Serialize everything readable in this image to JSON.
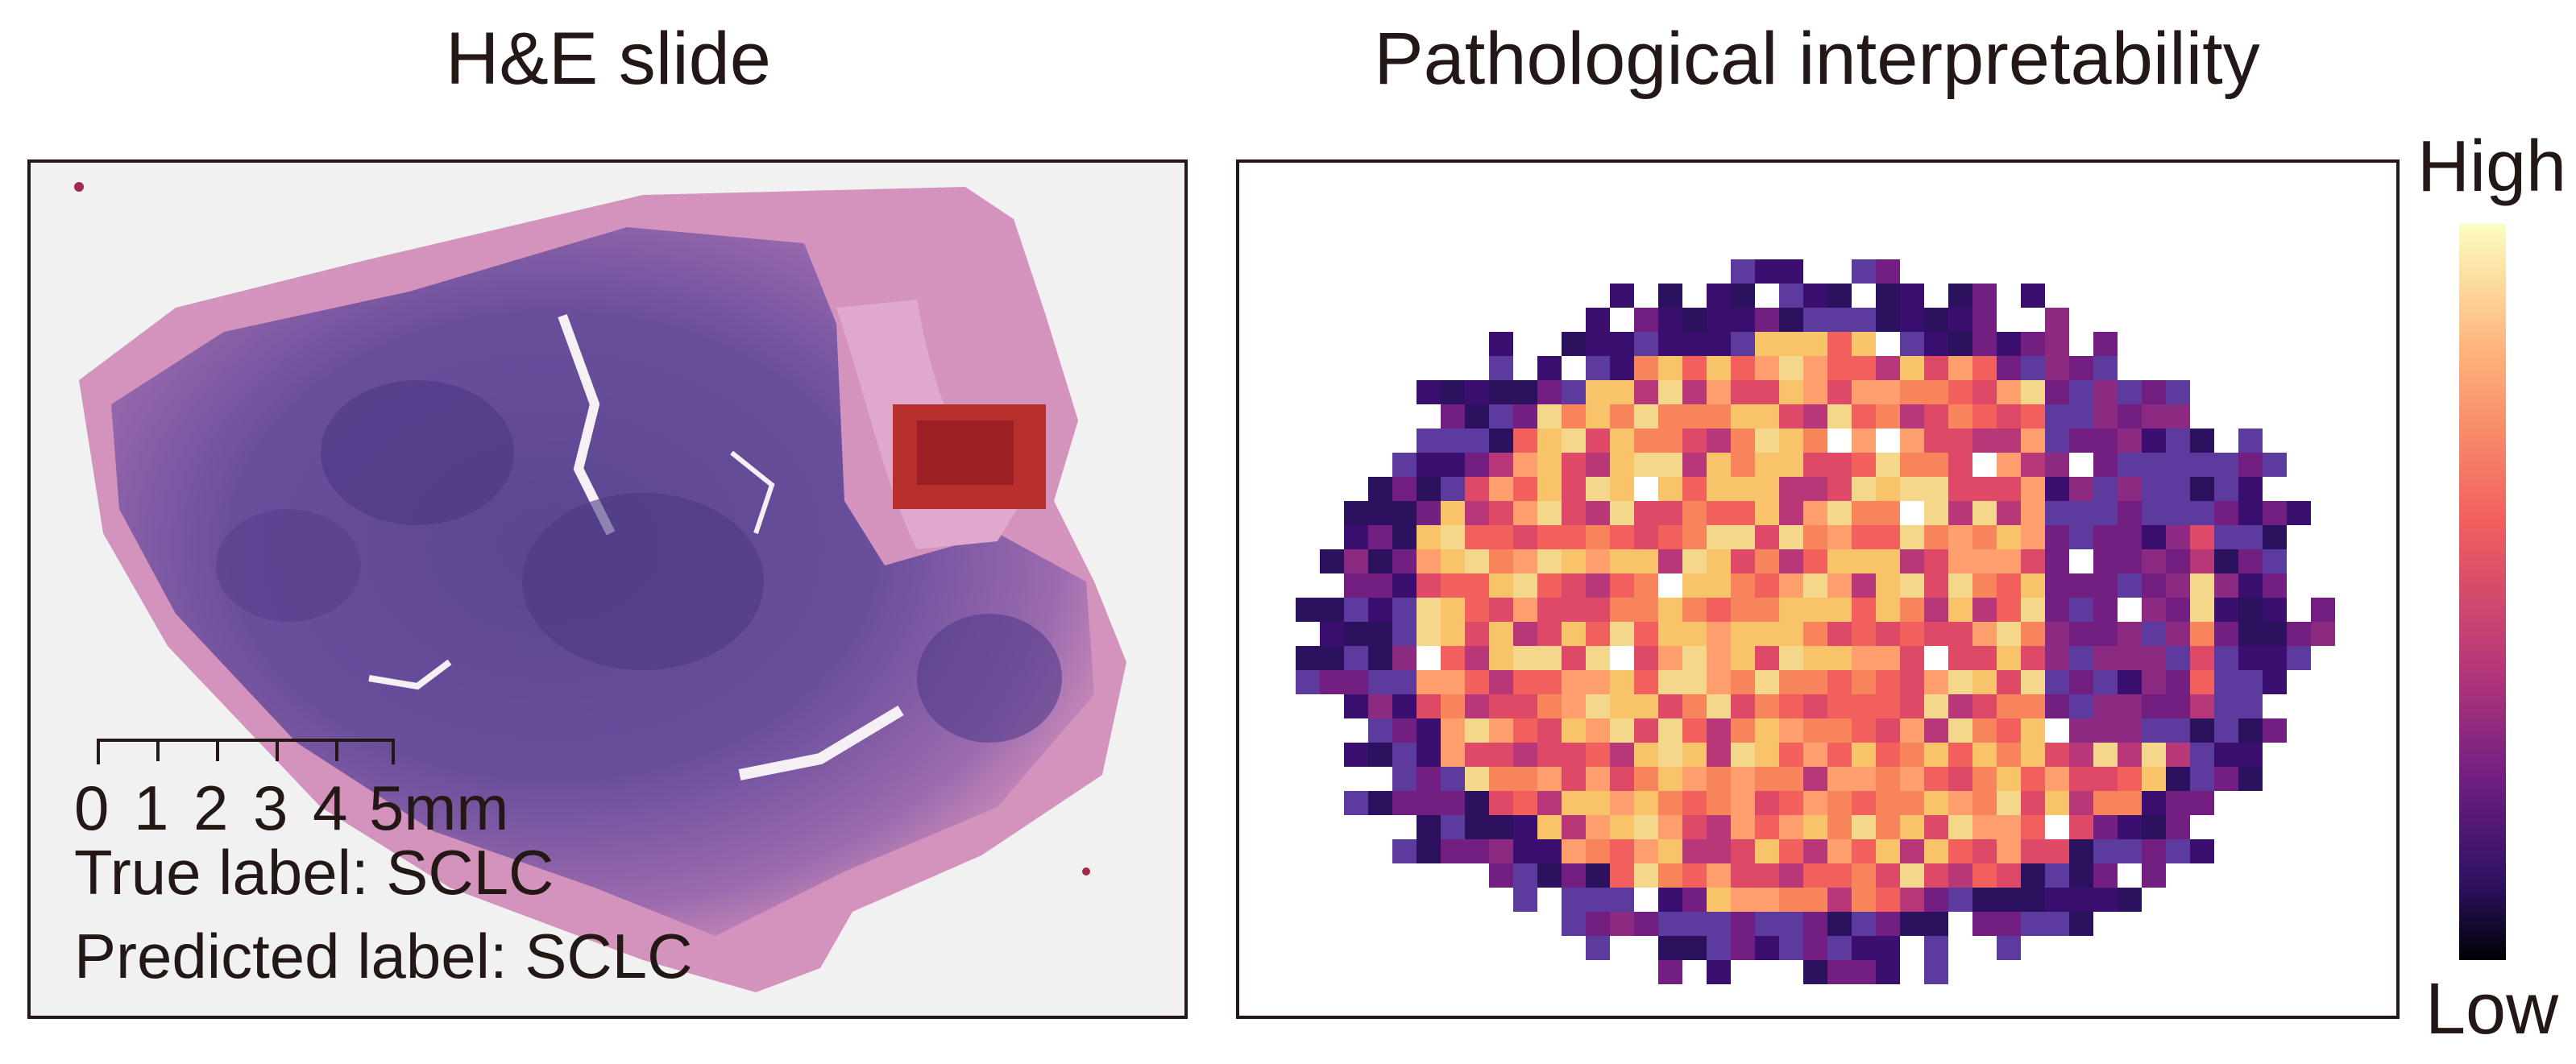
{
  "left_panel": {
    "title": "H&E slide",
    "scale_bar": {
      "ticks": [
        "0",
        "1",
        "2",
        "3",
        "4",
        "5mm"
      ]
    },
    "true_label": "True label: SCLC",
    "predicted_label": "Predicted label: SCLC"
  },
  "right_panel": {
    "title": "Pathological interpretability",
    "colorbar": {
      "high_label": "High",
      "low_label": "Low",
      "colormap": "magma",
      "colors": [
        "#fcfdbf",
        "#feb078",
        "#f1605d",
        "#b73779",
        "#721f81",
        "#2c115f",
        "#000004"
      ]
    }
  },
  "colors": {
    "text": "#231815",
    "frame": "#231815",
    "he_purple": "#6a4a9a",
    "he_pink": "#d48ab8"
  }
}
